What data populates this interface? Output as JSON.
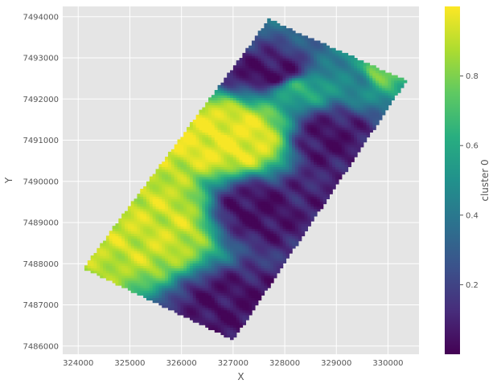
{
  "chart_data": {
    "type": "heatmap",
    "title": "",
    "xlabel": "X",
    "ylabel": "Y",
    "xlim": [
      323700,
      330600
    ],
    "ylim": [
      7485800,
      7494250
    ],
    "x_ticks": [
      324000,
      325000,
      326000,
      327000,
      328000,
      329000,
      330000
    ],
    "x_tick_labels": [
      "324000",
      "325000",
      "326000",
      "327000",
      "328000",
      "329000",
      "330000"
    ],
    "y_ticks": [
      7486000,
      7487000,
      7488000,
      7489000,
      7490000,
      7491000,
      7492000,
      7493000,
      7494000
    ],
    "y_tick_labels": [
      "7486000",
      "7487000",
      "7488000",
      "7489000",
      "7490000",
      "7491000",
      "7492000",
      "7493000",
      "7494000"
    ],
    "grid": true,
    "colormap": "viridis",
    "colorbar": {
      "label": "cluster 0",
      "range": [
        0.0,
        1.0
      ],
      "ticks": [
        0.2,
        0.4,
        0.6,
        0.8
      ],
      "tick_labels": [
        "0.2",
        "0.4",
        "0.6",
        "0.8"
      ]
    },
    "survey_outline": [
      [
        324100,
        7487900
      ],
      [
        327700,
        7493950
      ],
      [
        328100,
        7493700
      ],
      [
        329100,
        7493150
      ],
      [
        330350,
        7492450
      ],
      [
        327000,
        7486150
      ]
    ],
    "value_regions": [
      {
        "center": [
          326900,
          7491000
        ],
        "radius": [
          900,
          600
        ],
        "value": 0.97
      },
      {
        "center": [
          325500,
          7489000
        ],
        "radius": [
          900,
          900
        ],
        "value": 0.92
      },
      {
        "center": [
          327800,
          7492600
        ],
        "radius": [
          650,
          350
        ],
        "value": 0.03
      },
      {
        "center": [
          328800,
          7491000
        ],
        "radius": [
          550,
          550
        ],
        "value": 0.05
      },
      {
        "center": [
          327400,
          7489300
        ],
        "radius": [
          700,
          600
        ],
        "value": 0.04
      },
      {
        "center": [
          326900,
          7487000
        ],
        "radius": [
          750,
          650
        ],
        "value": 0.05
      },
      {
        "center": [
          329800,
          7492700
        ],
        "radius": [
          350,
          300
        ],
        "value": 0.82
      },
      {
        "center": [
          328300,
          7492300
        ],
        "radius": [
          550,
          350
        ],
        "value": 0.62
      },
      {
        "center": [
          328600,
          7489700
        ],
        "radius": [
          400,
          600
        ],
        "value": 0.1
      },
      {
        "center": [
          329300,
          7492600
        ],
        "radius": [
          500,
          400
        ],
        "value": 0.45
      }
    ],
    "axes_facecolor": "#e5e5e5",
    "grid_color": "#ffffff"
  }
}
